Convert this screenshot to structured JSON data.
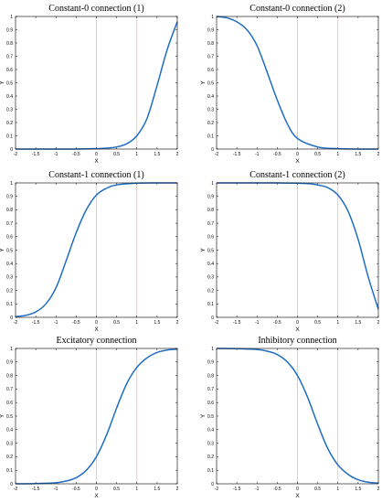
{
  "chart_data": [
    {
      "type": "line",
      "title": "Constant-0 connection (1)",
      "xlabel": "X",
      "ylabel": "Y",
      "xlim": [
        -2,
        2
      ],
      "ylim": [
        0,
        1
      ],
      "xticks": [
        -2,
        -1.5,
        -1,
        -0.5,
        0,
        0.5,
        1,
        1.5,
        2
      ],
      "yticks": [
        0,
        0.1,
        0.2,
        0.3,
        0.4,
        0.5,
        0.6,
        0.7,
        0.8,
        0.9,
        1
      ],
      "vlines": [
        0,
        1
      ],
      "series": [
        {
          "x": [
            -2,
            -1.5,
            -1,
            -0.5,
            0,
            0.25,
            0.5,
            0.75,
            1,
            1.25,
            1.5,
            1.75,
            2
          ],
          "values": [
            0,
            0,
            0,
            0,
            0.003,
            0.007,
            0.016,
            0.04,
            0.1,
            0.23,
            0.48,
            0.75,
            0.96
          ]
        }
      ],
      "color": "#1f6ec2",
      "vline_color": "#f0b9a2"
    },
    {
      "type": "line",
      "title": "Constant-0 connection (2)",
      "xlabel": "X",
      "ylabel": "Y",
      "xlim": [
        -2,
        2
      ],
      "ylim": [
        0,
        1
      ],
      "xticks": [
        -2,
        -1.5,
        -1,
        -0.5,
        0,
        0.5,
        1,
        1.5,
        2
      ],
      "yticks": [
        0,
        0.1,
        0.2,
        0.3,
        0.4,
        0.5,
        0.6,
        0.7,
        0.8,
        0.9,
        1
      ],
      "vlines": [
        0,
        1
      ],
      "series": [
        {
          "x": [
            -2,
            -1.75,
            -1.5,
            -1.25,
            -1,
            -0.75,
            -0.5,
            -0.25,
            0,
            0.5,
            1,
            1.5,
            2
          ],
          "values": [
            1,
            0.99,
            0.96,
            0.9,
            0.78,
            0.58,
            0.37,
            0.19,
            0.08,
            0.016,
            0.003,
            0,
            0
          ]
        }
      ],
      "color": "#1f6ec2",
      "vline_color": "#f0b9a2"
    },
    {
      "type": "line",
      "title": "Constant-1 connection (1)",
      "xlabel": "X",
      "ylabel": "Y",
      "xlim": [
        -2,
        2
      ],
      "ylim": [
        0,
        1
      ],
      "xticks": [
        -2,
        -1.5,
        -1,
        -0.5,
        0,
        0.5,
        1,
        1.5,
        2
      ],
      "yticks": [
        0,
        0.1,
        0.2,
        0.3,
        0.4,
        0.5,
        0.6,
        0.7,
        0.8,
        0.9,
        1
      ],
      "vlines": [
        0,
        1
      ],
      "series": [
        {
          "x": [
            -2,
            -1.75,
            -1.5,
            -1.25,
            -1,
            -0.75,
            -0.5,
            -0.25,
            0,
            0.25,
            0.5,
            1,
            1.5,
            2
          ],
          "values": [
            0.005,
            0.015,
            0.04,
            0.1,
            0.22,
            0.42,
            0.63,
            0.8,
            0.91,
            0.96,
            0.985,
            0.998,
            1,
            1
          ]
        }
      ],
      "color": "#1f6ec2",
      "vline_color": "#f0b9a2"
    },
    {
      "type": "line",
      "title": "Constant-1 connection (2)",
      "xlabel": "X",
      "ylabel": "Y",
      "xlim": [
        -2,
        2
      ],
      "ylim": [
        0,
        1
      ],
      "xticks": [
        -2,
        -1.5,
        -1,
        -0.5,
        0,
        0.5,
        1,
        1.5,
        2
      ],
      "yticks": [
        0,
        0.1,
        0.2,
        0.3,
        0.4,
        0.5,
        0.6,
        0.7,
        0.8,
        0.9,
        1
      ],
      "vlines": [
        0,
        1
      ],
      "series": [
        {
          "x": [
            -2,
            -1,
            -0.5,
            0,
            0.25,
            0.5,
            0.75,
            1,
            1.25,
            1.5,
            1.75,
            2
          ],
          "values": [
            1,
            1,
            1,
            0.998,
            0.995,
            0.985,
            0.965,
            0.91,
            0.79,
            0.58,
            0.3,
            0.06
          ]
        }
      ],
      "color": "#1f6ec2",
      "vline_color": "#f0b9a2"
    },
    {
      "type": "line",
      "title": "Excitatory connection",
      "xlabel": "X",
      "ylabel": "Y",
      "xlim": [
        -2,
        2
      ],
      "ylim": [
        0,
        1
      ],
      "xticks": [
        -2,
        -1.5,
        -1,
        -0.5,
        0,
        0.5,
        1,
        1.5,
        2
      ],
      "yticks": [
        0,
        0.1,
        0.2,
        0.3,
        0.4,
        0.5,
        0.6,
        0.7,
        0.8,
        0.9,
        1
      ],
      "vlines": [
        0,
        1
      ],
      "series": [
        {
          "x": [
            -2,
            -1.5,
            -1,
            -0.75,
            -0.5,
            -0.25,
            0,
            0.25,
            0.5,
            0.75,
            1,
            1.25,
            1.5,
            1.75,
            2
          ],
          "values": [
            0,
            0.002,
            0.008,
            0.02,
            0.045,
            0.1,
            0.2,
            0.36,
            0.56,
            0.74,
            0.86,
            0.93,
            0.97,
            0.988,
            0.995
          ]
        }
      ],
      "color": "#1f6ec2",
      "vline_color": "#f0b9a2"
    },
    {
      "type": "line",
      "title": "Inhibitory connection",
      "xlabel": "X",
      "ylabel": "Y",
      "xlim": [
        -2,
        2
      ],
      "ylim": [
        0,
        1
      ],
      "xticks": [
        -2,
        -1.5,
        -1,
        -0.5,
        0,
        0.5,
        1,
        1.5,
        2
      ],
      "yticks": [
        0,
        0.1,
        0.2,
        0.3,
        0.4,
        0.5,
        0.6,
        0.7,
        0.8,
        0.9,
        1
      ],
      "vlines": [
        0,
        1
      ],
      "series": [
        {
          "x": [
            -2,
            -1.5,
            -1,
            -0.75,
            -0.5,
            -0.25,
            0,
            0.25,
            0.5,
            0.75,
            1,
            1.25,
            1.5,
            1.75,
            2
          ],
          "values": [
            1,
            0.998,
            0.992,
            0.98,
            0.955,
            0.9,
            0.8,
            0.64,
            0.44,
            0.26,
            0.14,
            0.07,
            0.03,
            0.012,
            0.005
          ]
        }
      ],
      "color": "#1f6ec2",
      "vline_color": "#f0b9a2"
    }
  ]
}
